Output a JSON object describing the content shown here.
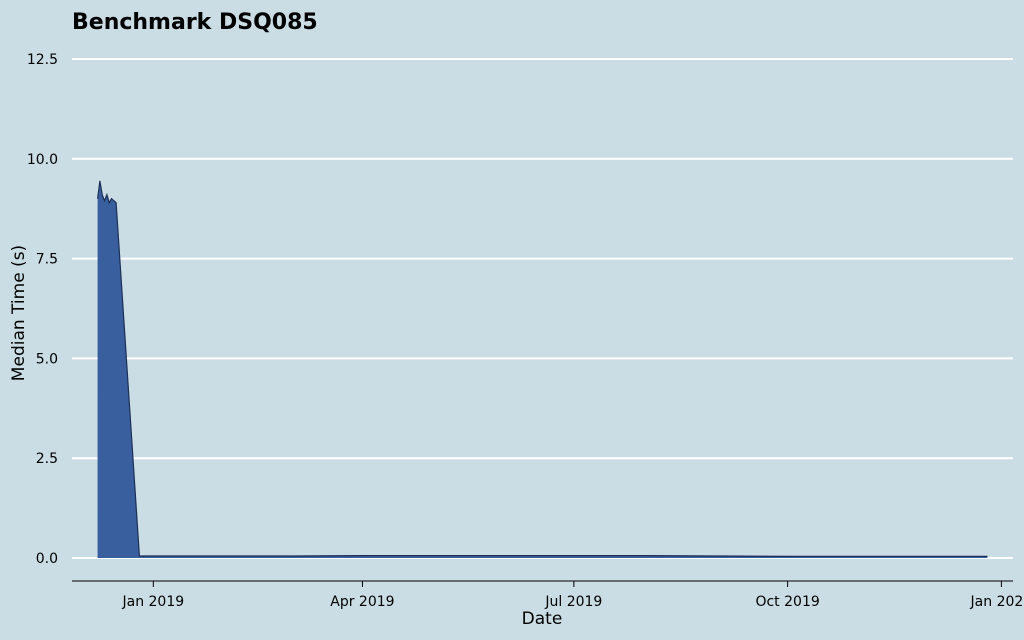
{
  "chart_data": {
    "type": "area",
    "title": "Benchmark DSQ085",
    "xlabel": "Date",
    "ylabel": "Median Time (s)",
    "ylim": [
      0,
      12.5
    ],
    "xlim": [
      "2018-11-27",
      "2020-01-06"
    ],
    "y_ticks": [
      0,
      2.5,
      5,
      7.5,
      10,
      12.5
    ],
    "y_tick_labels": [
      "0.0",
      "2.5",
      "5.0",
      "7.5",
      "10.0",
      "12.5"
    ],
    "x_ticks": [
      "2019-01-01",
      "2019-04-01",
      "2019-07-01",
      "2019-10-01",
      "2020-01-01"
    ],
    "x_tick_labels": [
      "Jan 2019",
      "Apr 2019",
      "Jul 2019",
      "Oct 2019",
      "Jan 2020"
    ],
    "grid": "horizontal",
    "colors": {
      "fill": "#3a5f9e",
      "line": "#1c2f55",
      "grid": "#ffffff",
      "background": "#cadde5"
    },
    "series": [
      {
        "name": "Median Time (s)",
        "x": [
          "2018-12-08",
          "2018-12-09",
          "2018-12-10",
          "2018-12-11",
          "2018-12-12",
          "2018-12-13",
          "2018-12-14",
          "2018-12-15",
          "2018-12-16",
          "2018-12-26",
          "2019-01-15",
          "2019-03-01",
          "2019-04-01",
          "2019-06-01",
          "2019-07-01",
          "2019-08-01",
          "2019-09-01",
          "2019-10-01",
          "2019-11-01",
          "2019-12-01",
          "2019-12-26"
        ],
        "values": [
          9.0,
          9.45,
          9.1,
          8.95,
          9.1,
          8.9,
          9.0,
          8.95,
          8.9,
          0.05,
          0.05,
          0.05,
          0.06,
          0.06,
          0.06,
          0.06,
          0.05,
          0.04,
          0.04,
          0.04,
          0.04
        ]
      }
    ]
  }
}
